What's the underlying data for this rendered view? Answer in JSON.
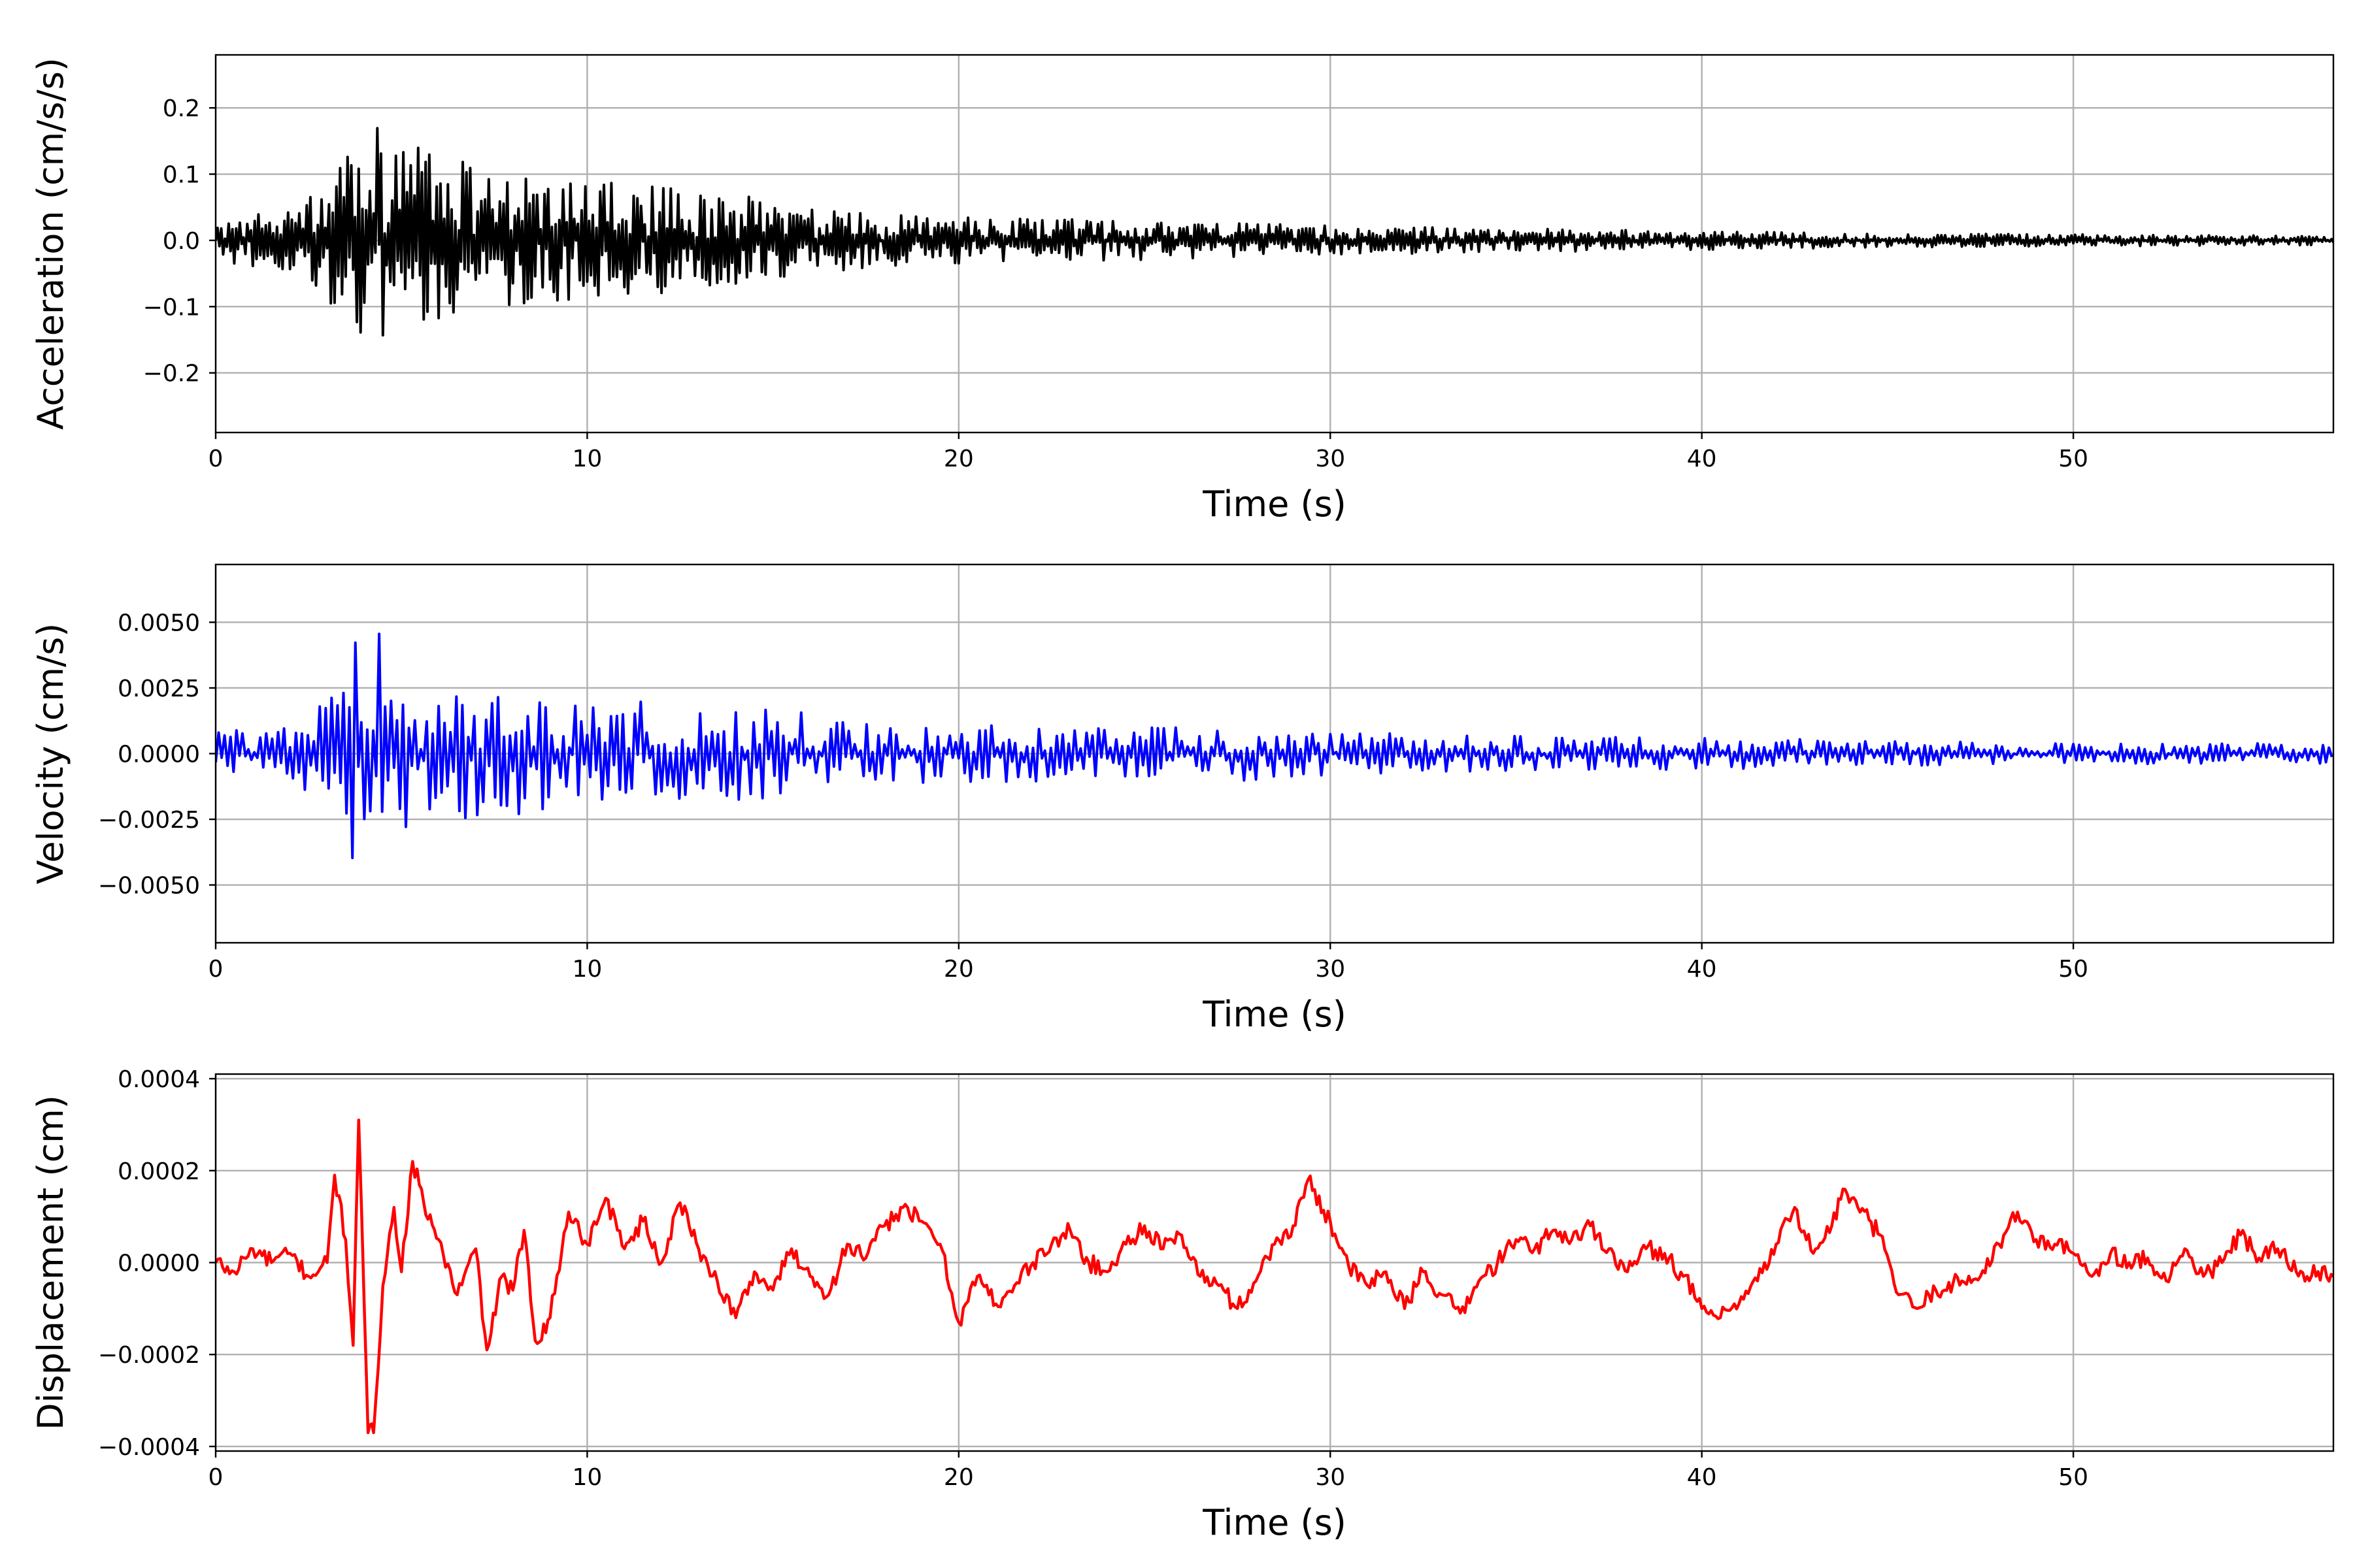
{
  "chart_data": [
    {
      "type": "line",
      "xlabel": "Time (s)",
      "ylabel": "Acceleration (cm/s/s)",
      "xlim": [
        0,
        57
      ],
      "ylim": [
        -0.29,
        0.28
      ],
      "xticks": [
        0,
        10,
        20,
        30,
        40,
        50
      ],
      "yticks": [
        -0.2,
        -0.1,
        0.0,
        0.1,
        0.2
      ],
      "ytick_labels": [
        "−0.2",
        "−0.1",
        "0.0",
        "0.1",
        "0.2"
      ],
      "grid": true,
      "color": "#000000",
      "series": [
        {
          "values_note_free": true,
          "x_step": 0.05,
          "envelope": {
            "t": [
              0,
              2,
              3,
              3.5,
              4,
              5,
              6,
              7,
              8,
              10,
              12,
              14,
              16,
              20,
              25,
              30,
              35,
              40,
              45,
              50,
              57
            ],
            "amp": [
              0.03,
              0.05,
              0.09,
              0.12,
              0.24,
              0.15,
              0.13,
              0.12,
              0.1,
              0.09,
              0.08,
              0.07,
              0.05,
              0.035,
              0.03,
              0.022,
              0.018,
              0.014,
              0.011,
              0.009,
              0.007
            ]
          }
        }
      ]
    },
    {
      "type": "line",
      "xlabel": "Time (s)",
      "ylabel": "Velocity (cm/s)",
      "xlim": [
        0,
        57
      ],
      "ylim": [
        -0.0072,
        0.0072
      ],
      "xticks": [
        0,
        10,
        20,
        30,
        40,
        50
      ],
      "yticks": [
        -0.005,
        -0.0025,
        0.0,
        0.0025,
        0.005
      ],
      "ytick_labels": [
        "−0.0050",
        "−0.0025",
        "0.0000",
        "0.0025",
        "0.0050"
      ],
      "grid": true,
      "color": "#0000ff",
      "series": [
        {
          "x_step": 0.08,
          "envelope": {
            "t": [
              0,
              2,
              3,
              3.5,
              3.8,
              4.2,
              5,
              6,
              7,
              9,
              10,
              12,
              14,
              15,
              16,
              20,
              25,
              26,
              30,
              35,
              40,
              45,
              50,
              57
            ],
            "amp": [
              0.0009,
              0.001,
              0.0022,
              0.004,
              0.0062,
              0.0055,
              0.0035,
              0.0028,
              0.0025,
              0.0022,
              0.0024,
              0.0019,
              0.0018,
              0.0022,
              0.0014,
              0.0011,
              0.001,
              0.0012,
              0.0008,
              0.0007,
              0.0006,
              0.0005,
              0.0004,
              0.0004
            ]
          }
        }
      ]
    },
    {
      "type": "line",
      "xlabel": "Time (s)",
      "ylabel": "Displacement (cm)",
      "xlim": [
        0,
        57
      ],
      "ylim": [
        -0.00041,
        0.00041
      ],
      "xticks": [
        0,
        10,
        20,
        30,
        40,
        50
      ],
      "yticks": [
        -0.0004,
        -0.0002,
        0.0,
        0.0002,
        0.0004
      ],
      "ytick_labels": [
        "−0.0004",
        "−0.0002",
        "0.0000",
        "0.0002",
        "0.0004"
      ],
      "grid": true,
      "color": "#ff0000",
      "series": [
        {
          "points": [
            [
              0,
              0.0
            ],
            [
              0.5,
              -2e-05
            ],
            [
              1,
              3e-05
            ],
            [
              1.5,
              0.0
            ],
            [
              2,
              2e-05
            ],
            [
              2.5,
              -3e-05
            ],
            [
              3,
              0.0
            ],
            [
              3.2,
              0.00019
            ],
            [
              3.5,
              5e-05
            ],
            [
              3.7,
              -0.00018
            ],
            [
              3.85,
              0.00031
            ],
            [
              4.0,
              -0.0001
            ],
            [
              4.1,
              -0.00037
            ],
            [
              4.25,
              -0.00037
            ],
            [
              4.5,
              -5e-05
            ],
            [
              4.8,
              0.00012
            ],
            [
              5.0,
              -2e-05
            ],
            [
              5.3,
              0.00022
            ],
            [
              5.6,
              0.00013
            ],
            [
              6.0,
              5e-05
            ],
            [
              6.5,
              -7e-05
            ],
            [
              7.0,
              3e-05
            ],
            [
              7.3,
              -0.00019
            ],
            [
              7.7,
              -3e-05
            ],
            [
              8.0,
              -6e-05
            ],
            [
              8.3,
              7e-05
            ],
            [
              8.6,
              -0.00017
            ],
            [
              9.0,
              -0.00012
            ],
            [
              9.5,
              0.00011
            ],
            [
              10.0,
              4e-05
            ],
            [
              10.5,
              0.00014
            ],
            [
              11.0,
              3e-05
            ],
            [
              11.5,
              9e-05
            ],
            [
              12.0,
              0.0
            ],
            [
              12.5,
              0.00013
            ],
            [
              13.0,
              3e-05
            ],
            [
              13.5,
              -4e-05
            ],
            [
              14.0,
              -0.00012
            ],
            [
              14.5,
              -2e-05
            ],
            [
              15.0,
              -6e-05
            ],
            [
              15.5,
              3e-05
            ],
            [
              16.0,
              -3e-05
            ],
            [
              16.5,
              -7e-05
            ],
            [
              17.0,
              4e-05
            ],
            [
              17.5,
              1e-05
            ],
            [
              18.0,
              8e-05
            ],
            [
              18.5,
              0.00012
            ],
            [
              19.0,
              9e-05
            ],
            [
              19.5,
              4e-05
            ],
            [
              20.0,
              -0.00013
            ],
            [
              20.5,
              -3e-05
            ],
            [
              21.0,
              -9e-05
            ],
            [
              21.5,
              -5e-05
            ],
            [
              22.0,
              0.0
            ],
            [
              22.5,
              4e-05
            ],
            [
              23.0,
              7e-05
            ],
            [
              23.5,
              0.0
            ],
            [
              24.0,
              -2e-05
            ],
            [
              24.5,
              4e-05
            ],
            [
              25.0,
              8e-05
            ],
            [
              25.5,
              3e-05
            ],
            [
              26.0,
              6e-05
            ],
            [
              26.5,
              -3e-05
            ],
            [
              27.0,
              -5e-05
            ],
            [
              27.5,
              -0.0001
            ],
            [
              28.0,
              -4e-05
            ],
            [
              28.5,
              4e-05
            ],
            [
              29.0,
              8e-05
            ],
            [
              29.4,
              0.00018
            ],
            [
              30.0,
              9e-05
            ],
            [
              30.5,
              -1e-05
            ],
            [
              31.0,
              -5e-05
            ],
            [
              31.5,
              -2e-05
            ],
            [
              32.0,
              -0.0001
            ],
            [
              32.5,
              -2e-05
            ],
            [
              33.0,
              -7e-05
            ],
            [
              33.5,
              -0.00011
            ],
            [
              34.0,
              -4e-05
            ],
            [
              34.5,
              0.0
            ],
            [
              35.0,
              5e-05
            ],
            [
              35.5,
              3e-05
            ],
            [
              36.0,
              7e-05
            ],
            [
              36.5,
              5e-05
            ],
            [
              37.0,
              8e-05
            ],
            [
              37.5,
              3e-05
            ],
            [
              38.0,
              -2e-05
            ],
            [
              38.5,
              3e-05
            ],
            [
              39.0,
              2e-05
            ],
            [
              39.5,
              -3e-05
            ],
            [
              40.0,
              -0.0001
            ],
            [
              40.5,
              -0.00012
            ],
            [
              41.0,
              -9e-05
            ],
            [
              41.5,
              -4e-05
            ],
            [
              42.0,
              4e-05
            ],
            [
              42.5,
              0.00012
            ],
            [
              43.0,
              2e-05
            ],
            [
              43.5,
              8e-05
            ],
            [
              43.8,
              0.00016
            ],
            [
              44.2,
              0.00012
            ],
            [
              44.8,
              6e-05
            ],
            [
              45.3,
              -7e-05
            ],
            [
              45.8,
              -0.0001
            ],
            [
              46.3,
              -6e-05
            ],
            [
              47.0,
              -4e-05
            ],
            [
              47.5,
              -3e-05
            ],
            [
              48.0,
              4e-05
            ],
            [
              48.5,
              0.00011
            ],
            [
              49.0,
              5e-05
            ],
            [
              49.5,
              4e-05
            ],
            [
              50.0,
              2e-05
            ],
            [
              50.5,
              -3e-05
            ],
            [
              51.0,
              2e-05
            ],
            [
              51.5,
              0.0
            ],
            [
              52.0,
              1e-05
            ],
            [
              52.5,
              -4e-05
            ],
            [
              53.0,
              3e-05
            ],
            [
              53.5,
              -3e-05
            ],
            [
              54.0,
              0.0
            ],
            [
              54.5,
              6e-05
            ],
            [
              55.0,
              1e-05
            ],
            [
              55.5,
              3e-05
            ],
            [
              56.0,
              -2e-05
            ],
            [
              57.0,
              -3e-05
            ]
          ]
        }
      ]
    }
  ]
}
